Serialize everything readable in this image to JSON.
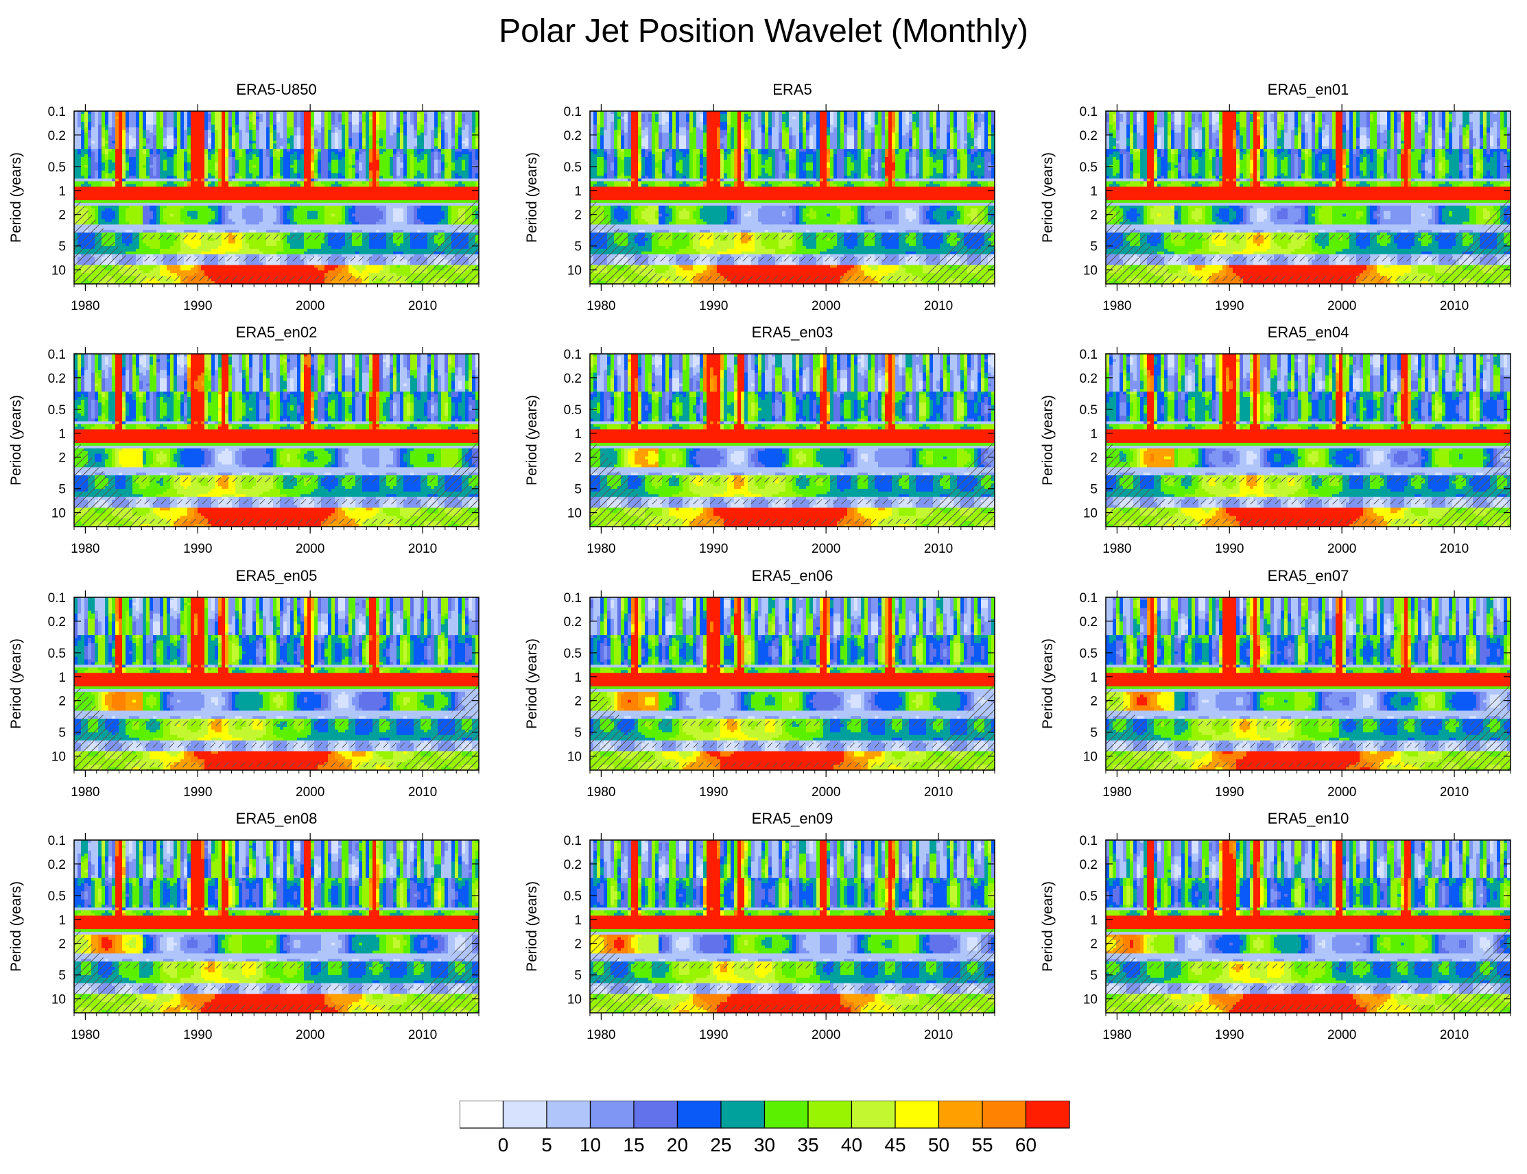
{
  "title": "Polar Jet Position Wavelet (Monthly)",
  "panels": [
    {
      "name": "ERA5-U850"
    },
    {
      "name": "ERA5"
    },
    {
      "name": "ERA5_en01"
    },
    {
      "name": "ERA5_en02"
    },
    {
      "name": "ERA5_en03"
    },
    {
      "name": "ERA5_en04"
    },
    {
      "name": "ERA5_en05"
    },
    {
      "name": "ERA5_en06"
    },
    {
      "name": "ERA5_en07"
    },
    {
      "name": "ERA5_en08"
    },
    {
      "name": "ERA5_en09"
    },
    {
      "name": "ERA5_en10"
    }
  ],
  "chart_data": {
    "type": "heatmap",
    "ylabel": "Period (years)",
    "x_ticks": [
      1980,
      1990,
      2000,
      2010
    ],
    "xlim": [
      1979,
      2015
    ],
    "y_ticks": [
      0.1,
      0.2,
      0.5,
      1,
      2,
      5,
      10
    ],
    "ylim": [
      0.1,
      15
    ],
    "y_scale": "log",
    "y_reversed": true,
    "colorbar": {
      "labels": [
        "0",
        "5",
        "10",
        "15",
        "20",
        "25",
        "30",
        "35",
        "40",
        "45",
        "50",
        "55",
        "60"
      ],
      "colors": [
        "#ffffff",
        "#d6e2ff",
        "#b0c6fb",
        "#8096f5",
        "#6272ea",
        "#0a5af8",
        "#00a09c",
        "#5bf000",
        "#98f400",
        "#c3f830",
        "#ffff00",
        "#ffa000",
        "#ff8200",
        "#ff1e00"
      ]
    }
  }
}
